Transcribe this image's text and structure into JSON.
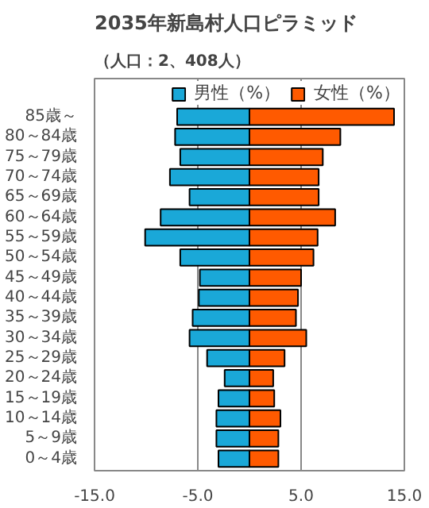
{
  "chart_data": {
    "type": "bar",
    "orientation": "horizontal",
    "title": "2035年新島村人口ピラミッド",
    "subtitle": "（人口：2、408人）",
    "categories": [
      "85歳～",
      "80～84歳",
      "75～79歳",
      "70～74歳",
      "65～69歳",
      "60～64歳",
      "55～59歳",
      "50～54歳",
      "45～49歳",
      "40～44歳",
      "35～39歳",
      "30～34歳",
      "25～29歳",
      "20～24歳",
      "15～19歳",
      "10～14歳",
      "5～9歳",
      "0～4歳"
    ],
    "series": [
      {
        "name": "男性（%）",
        "color": "#1aa8d8",
        "values": [
          -7.0,
          -7.2,
          -6.7,
          -7.7,
          -5.8,
          -8.6,
          -10.1,
          -6.7,
          -4.8,
          -4.9,
          -5.5,
          -5.8,
          -4.1,
          -2.4,
          -3.0,
          -3.2,
          -3.2,
          -3.0
        ]
      },
      {
        "name": "女性（%）",
        "color": "#ff5a00",
        "values": [
          14.0,
          8.8,
          7.1,
          6.7,
          6.7,
          8.3,
          6.6,
          6.2,
          5.0,
          4.7,
          4.5,
          5.5,
          3.4,
          2.3,
          2.4,
          3.0,
          2.8,
          2.8
        ]
      }
    ],
    "xlim": [
      -15,
      15
    ],
    "xticks": [
      {
        "value": -15,
        "label": "-15.0"
      },
      {
        "value": -5,
        "label": "-5.0"
      },
      {
        "value": 5,
        "label": "5.0"
      },
      {
        "value": 15,
        "label": "15.0"
      }
    ],
    "stacked": true,
    "grid": "x",
    "legend": "top right"
  }
}
